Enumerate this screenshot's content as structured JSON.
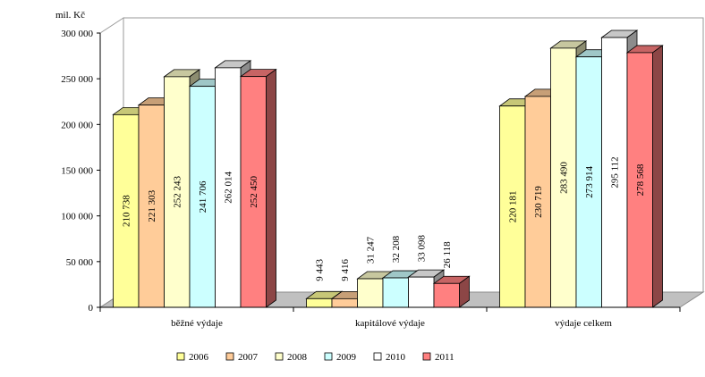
{
  "chart_data": {
    "type": "bar",
    "unit_label": "mil. Kč",
    "categories": [
      "běžné výdaje",
      "kapitálové výdaje",
      "výdaje celkem"
    ],
    "yticks": [
      "0",
      "50 000",
      "100 000",
      "150 000",
      "200 000",
      "250 000",
      "300 000"
    ],
    "ylim": [
      0,
      300000
    ],
    "legend_position": "bottom",
    "grid": false,
    "series": [
      {
        "name": "2006",
        "color": "#ffff99",
        "values": [
          210738,
          9443,
          220181
        ],
        "labels": [
          "210 738",
          "9 443",
          "220 181"
        ]
      },
      {
        "name": "2007",
        "color": "#ffcc99",
        "values": [
          221303,
          9416,
          230719
        ],
        "labels": [
          "221 303",
          "9 416",
          "230 719"
        ]
      },
      {
        "name": "2008",
        "color": "#ffffcc",
        "values": [
          252243,
          31247,
          283490
        ],
        "labels": [
          "252 243",
          "31 247",
          "283 490"
        ]
      },
      {
        "name": "2009",
        "color": "#ccffff",
        "values": [
          241706,
          32208,
          273914
        ],
        "labels": [
          "241 706",
          "32 208",
          "273 914"
        ]
      },
      {
        "name": "2010",
        "color": "#ffffff",
        "values": [
          262014,
          33098,
          295112
        ],
        "labels": [
          "262 014",
          "33 098",
          "295 112"
        ]
      },
      {
        "name": "2011",
        "color": "#ff8080",
        "values": [
          252450,
          26118,
          278568
        ],
        "labels": [
          "252 450",
          "26 118",
          "278 568"
        ]
      }
    ]
  }
}
